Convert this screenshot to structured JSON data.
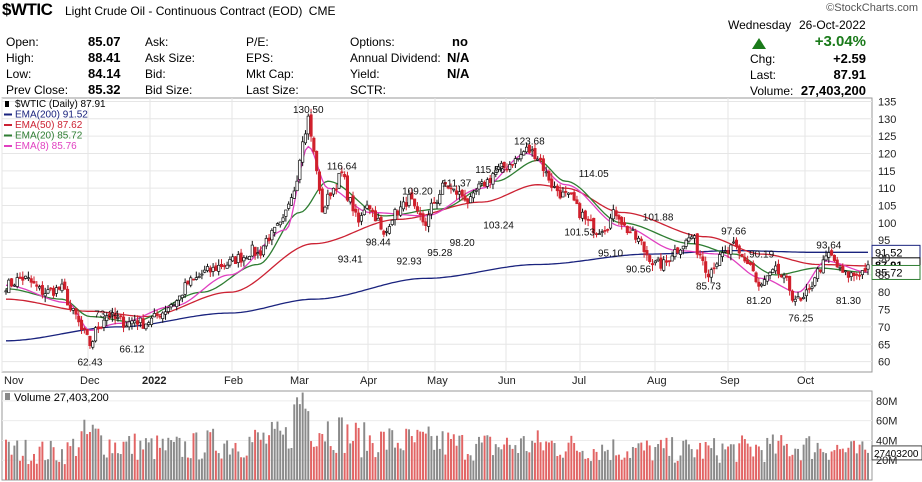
{
  "symbol": "$WTIC",
  "name": "Light Crude Oil - Continuous Contract (EOD)",
  "exchange": "CME",
  "site": "©StockCharts.com",
  "day": "Wednesday",
  "date": "26-Oct-2022",
  "change_pct": "+3.04%",
  "quote": {
    "open_label": "Open:",
    "open": "85.07",
    "high_label": "High:",
    "high": "88.41",
    "low_label": "Low:",
    "low": "84.14",
    "prev_label": "Prev Close:",
    "prev": "85.32",
    "ask_label": "Ask:",
    "asksize_label": "Ask Size:",
    "bid_label": "Bid:",
    "bidsize_label": "Bid Size:",
    "pe_label": "P/E:",
    "eps_label": "EPS:",
    "mktcap_label": "Mkt Cap:",
    "lastsize_label": "Last Size:",
    "options_label": "Options:",
    "options": "no",
    "div_label": "Annual Dividend:",
    "div": "N/A",
    "yield_label": "Yield:",
    "yield": "N/A",
    "sctr_label": "SCTR:",
    "chg_label": "Chg:",
    "chg": "+2.59",
    "last_label": "Last:",
    "last": "87.91",
    "vol_label": "Volume:",
    "vol": "27,403,200"
  },
  "chart_data": {
    "type": "line",
    "legend": [
      {
        "label": "$WTIC (Daily) 87.91",
        "color": "#000000"
      },
      {
        "label": "EMA(200) 91.52",
        "color": "#1a237e"
      },
      {
        "label": "EMA(50) 87.62",
        "color": "#cc2233"
      },
      {
        "label": "EMA(20) 85.72",
        "color": "#2e7d32"
      },
      {
        "label": "EMA(8) 85.76",
        "color": "#e040c0"
      }
    ],
    "price_axis": [
      135,
      130,
      125,
      120,
      115,
      110,
      105,
      100,
      95,
      90,
      85,
      80,
      75,
      70,
      65,
      60
    ],
    "ylim": [
      57,
      136
    ],
    "x_labels": [
      "Nov",
      "Dec",
      "2022",
      "Feb",
      "Mar",
      "Apr",
      "May",
      "Jun",
      "Jul",
      "Aug",
      "Sep",
      "Oct"
    ],
    "price_anchors": [
      [
        0,
        82
      ],
      [
        6,
        84
      ],
      [
        14,
        80
      ],
      [
        20,
        81
      ],
      [
        24,
        74
      ],
      [
        28,
        68
      ],
      [
        30,
        65
      ],
      [
        33,
        70
      ],
      [
        36,
        73.5
      ],
      [
        40,
        72
      ],
      [
        43,
        71
      ],
      [
        46,
        72
      ],
      [
        49,
        71
      ],
      [
        52,
        72
      ],
      [
        55,
        74
      ],
      [
        60,
        77
      ],
      [
        66,
        83
      ],
      [
        72,
        86
      ],
      [
        78,
        88
      ],
      [
        84,
        90
      ],
      [
        88,
        92
      ],
      [
        90,
        91
      ],
      [
        94,
        96
      ],
      [
        98,
        99
      ],
      [
        103,
        110
      ],
      [
        106,
        123
      ],
      [
        108,
        130
      ],
      [
        110,
        120
      ],
      [
        113,
        104
      ],
      [
        117,
        110
      ],
      [
        120,
        114
      ],
      [
        123,
        106
      ],
      [
        126,
        100
      ],
      [
        129,
        106
      ],
      [
        132,
        102
      ],
      [
        135,
        96
      ],
      [
        138,
        102
      ],
      [
        141,
        104
      ],
      [
        144,
        107
      ],
      [
        147,
        102
      ],
      [
        150,
        100
      ],
      [
        153,
        106
      ],
      [
        157,
        111
      ],
      [
        160,
        109
      ],
      [
        163,
        108
      ],
      [
        166,
        106
      ],
      [
        169,
        110
      ],
      [
        172,
        112
      ],
      [
        175,
        115
      ],
      [
        178,
        116
      ],
      [
        182,
        118
      ],
      [
        186,
        121
      ],
      [
        189,
        120
      ],
      [
        191,
        118
      ],
      [
        193,
        114
      ],
      [
        196,
        110
      ],
      [
        199,
        108
      ],
      [
        202,
        107
      ],
      [
        205,
        103
      ],
      [
        208,
        100
      ],
      [
        211,
        98
      ],
      [
        214,
        99
      ],
      [
        218,
        103
      ],
      [
        222,
        98
      ],
      [
        226,
        95
      ],
      [
        229,
        91
      ],
      [
        232,
        88
      ],
      [
        235,
        88
      ],
      [
        239,
        92
      ],
      [
        242,
        94
      ],
      [
        245,
        96
      ],
      [
        248,
        91
      ],
      [
        251,
        86
      ],
      [
        254,
        89
      ],
      [
        257,
        91
      ],
      [
        260,
        93
      ],
      [
        263,
        90
      ],
      [
        266,
        88
      ],
      [
        269,
        81
      ],
      [
        272,
        84
      ],
      [
        275,
        86
      ],
      [
        279,
        83
      ],
      [
        281,
        79
      ],
      [
        284,
        77
      ],
      [
        287,
        80
      ],
      [
        289,
        85
      ],
      [
        292,
        88
      ],
      [
        294,
        91
      ],
      [
        296,
        89
      ],
      [
        298,
        86
      ],
      [
        300,
        85
      ],
      [
        303,
        85
      ],
      [
        306,
        86
      ],
      [
        308,
        87.9
      ]
    ],
    "ema200_anchors": [
      [
        0,
        66
      ],
      [
        40,
        70
      ],
      [
        80,
        74
      ],
      [
        110,
        78
      ],
      [
        150,
        84
      ],
      [
        190,
        88
      ],
      [
        230,
        91
      ],
      [
        260,
        92
      ],
      [
        290,
        91.5
      ],
      [
        308,
        91.5
      ]
    ],
    "ema50_anchors": [
      [
        0,
        78
      ],
      [
        30,
        74.5
      ],
      [
        50,
        73
      ],
      [
        80,
        80
      ],
      [
        110,
        94
      ],
      [
        140,
        101
      ],
      [
        170,
        106
      ],
      [
        190,
        111
      ],
      [
        200,
        110
      ],
      [
        220,
        103
      ],
      [
        250,
        96
      ],
      [
        270,
        91
      ],
      [
        290,
        88
      ],
      [
        308,
        87.6
      ]
    ],
    "ema20_anchors": [
      [
        0,
        81
      ],
      [
        20,
        78
      ],
      [
        30,
        73
      ],
      [
        45,
        71.5
      ],
      [
        70,
        80
      ],
      [
        90,
        88
      ],
      [
        105,
        103
      ],
      [
        115,
        112
      ],
      [
        135,
        102
      ],
      [
        155,
        104
      ],
      [
        175,
        112
      ],
      [
        190,
        118
      ],
      [
        200,
        112
      ],
      [
        220,
        100
      ],
      [
        245,
        94
      ],
      [
        260,
        91
      ],
      [
        275,
        85
      ],
      [
        290,
        87
      ],
      [
        308,
        85.7
      ]
    ],
    "ema8_anchors": [
      [
        0,
        82
      ],
      [
        22,
        77
      ],
      [
        30,
        69
      ],
      [
        40,
        71
      ],
      [
        60,
        76
      ],
      [
        80,
        85
      ],
      [
        100,
        98
      ],
      [
        108,
        122
      ],
      [
        115,
        110
      ],
      [
        130,
        103
      ],
      [
        150,
        102
      ],
      [
        170,
        110
      ],
      [
        186,
        120
      ],
      [
        200,
        111
      ],
      [
        220,
        99
      ],
      [
        240,
        92
      ],
      [
        255,
        91
      ],
      [
        270,
        84
      ],
      [
        283,
        80
      ],
      [
        293,
        89
      ],
      [
        308,
        85.8
      ]
    ],
    "annotations": [
      {
        "label": "130.50",
        "i": 108,
        "price": 130.5,
        "pos": "above"
      },
      {
        "label": "116.64",
        "i": 120,
        "price": 114.2,
        "pos": "above"
      },
      {
        "label": "109.20",
        "i": 147,
        "price": 107,
        "pos": "above"
      },
      {
        "label": "111.37",
        "i": 161,
        "price": 109.3,
        "pos": "above"
      },
      {
        "label": "115.56",
        "i": 173,
        "price": 113.2,
        "pos": "above"
      },
      {
        "label": "123.68",
        "i": 187,
        "price": 121.5,
        "pos": "above"
      },
      {
        "label": "114.05",
        "i": 210,
        "price": 112,
        "pos": "above"
      },
      {
        "label": "101.88",
        "i": 233,
        "price": 99.5,
        "pos": "above"
      },
      {
        "label": "97.66",
        "i": 260,
        "price": 95.5,
        "pos": "above"
      },
      {
        "label": "90.19",
        "i": 270,
        "price": 88.8,
        "pos": "above"
      },
      {
        "label": "93.64",
        "i": 294,
        "price": 91.5,
        "pos": "above"
      },
      {
        "label": "73.34",
        "i": 36,
        "price": 71.6,
        "pos": "above"
      },
      {
        "label": "62.43",
        "i": 30,
        "price": 62.4,
        "pos": "below"
      },
      {
        "label": "66.12",
        "i": 45,
        "price": 66.1,
        "pos": "below"
      },
      {
        "label": "93.41",
        "i": 123,
        "price": 92.0,
        "pos": "below"
      },
      {
        "label": "98.44",
        "i": 133,
        "price": 97.0,
        "pos": "below"
      },
      {
        "label": "92.93",
        "i": 144,
        "price": 91.5,
        "pos": "below"
      },
      {
        "label": "95.28",
        "i": 155,
        "price": 93.9,
        "pos": "below"
      },
      {
        "label": "98.20",
        "i": 163,
        "price": 96.8,
        "pos": "below"
      },
      {
        "label": "103.24",
        "i": 176,
        "price": 101.8,
        "pos": "below"
      },
      {
        "label": "101.53",
        "i": 205,
        "price": 99.8,
        "pos": "below"
      },
      {
        "label": "95.10",
        "i": 216,
        "price": 93.7,
        "pos": "below"
      },
      {
        "label": "90.56",
        "i": 226,
        "price": 89.2,
        "pos": "below"
      },
      {
        "label": "85.73",
        "i": 251,
        "price": 84.3,
        "pos": "below"
      },
      {
        "label": "81.20",
        "i": 269,
        "price": 80.0,
        "pos": "below"
      },
      {
        "label": "76.25",
        "i": 284,
        "price": 75.0,
        "pos": "below"
      },
      {
        "label": "81.30",
        "i": 301,
        "price": 80.0,
        "pos": "below"
      }
    ],
    "price_tags": [
      {
        "label": "91.52",
        "price": 91.5,
        "style": "outline",
        "color": "#1a237e"
      },
      {
        "label": "87.91",
        "price": 87.9,
        "style": "solid",
        "color": "#000000"
      },
      {
        "label": "85.72",
        "price": 85.7,
        "style": "outline",
        "color": "#2e7d32"
      }
    ],
    "volume_legend": "Volume 27,403,200",
    "volume_axis": [
      "80M",
      "60M",
      "40M",
      "20M"
    ],
    "volume_tag": "27403200",
    "volume_anchors": [
      [
        0,
        30
      ],
      [
        20,
        28
      ],
      [
        30,
        45
      ],
      [
        40,
        35
      ],
      [
        60,
        32
      ],
      [
        80,
        38
      ],
      [
        100,
        42
      ],
      [
        106,
        85
      ],
      [
        110,
        55
      ],
      [
        130,
        40
      ],
      [
        150,
        38
      ],
      [
        170,
        34
      ],
      [
        190,
        36
      ],
      [
        210,
        32
      ],
      [
        230,
        30
      ],
      [
        250,
        30
      ],
      [
        270,
        32
      ],
      [
        290,
        34
      ],
      [
        308,
        27
      ]
    ]
  }
}
